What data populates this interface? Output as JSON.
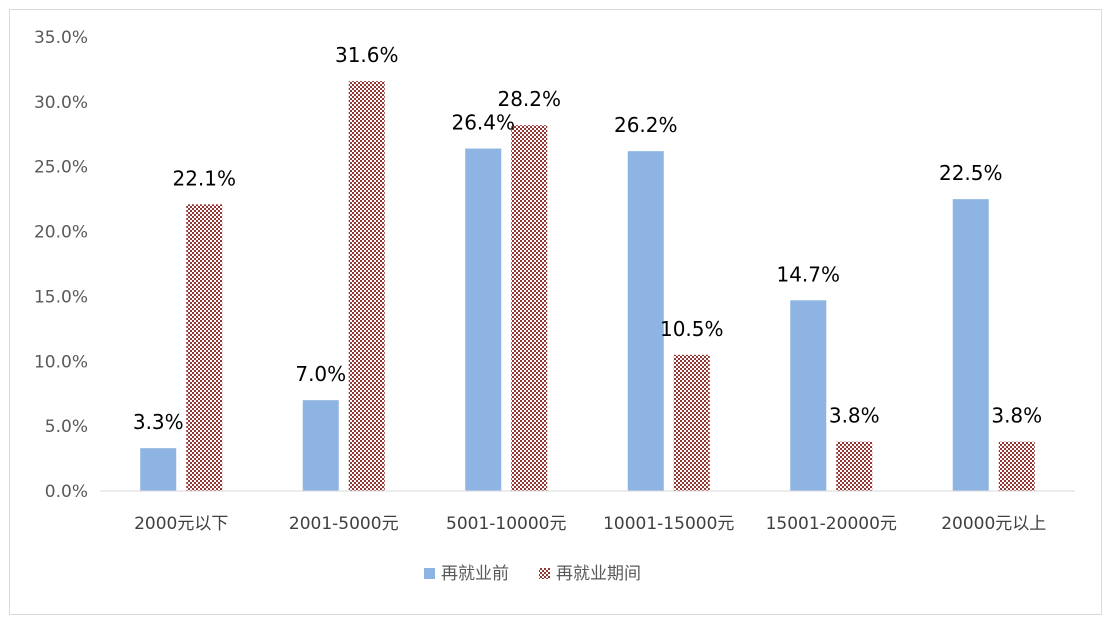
{
  "chart_data": {
    "type": "bar",
    "categories": [
      "2000元以下",
      "2001-5000元",
      "5001-10000元",
      "10001-15000元",
      "15001-20000元",
      "20000元以上"
    ],
    "series": [
      {
        "name": "再就业前",
        "values": [
          3.3,
          7.0,
          26.4,
          26.2,
          14.7,
          22.5
        ],
        "labels": [
          "3.3%",
          "7.0%",
          "26.4%",
          "26.2%",
          "14.7%",
          "22.5%"
        ],
        "color": "#8eb4e3",
        "pattern": "solid"
      },
      {
        "name": "再就业期间",
        "values": [
          22.1,
          31.6,
          28.2,
          10.5,
          3.8,
          3.8
        ],
        "labels": [
          "22.1%",
          "31.6%",
          "28.2%",
          "10.5%",
          "3.8%",
          "3.8%"
        ],
        "color": "#943634",
        "pattern": "checker"
      }
    ],
    "ylim": [
      0,
      35
    ],
    "yticks": [
      "0.0%",
      "5.0%",
      "10.0%",
      "15.0%",
      "20.0%",
      "25.0%",
      "30.0%",
      "35.0%"
    ],
    "grid": false,
    "legend_position": "bottom"
  }
}
